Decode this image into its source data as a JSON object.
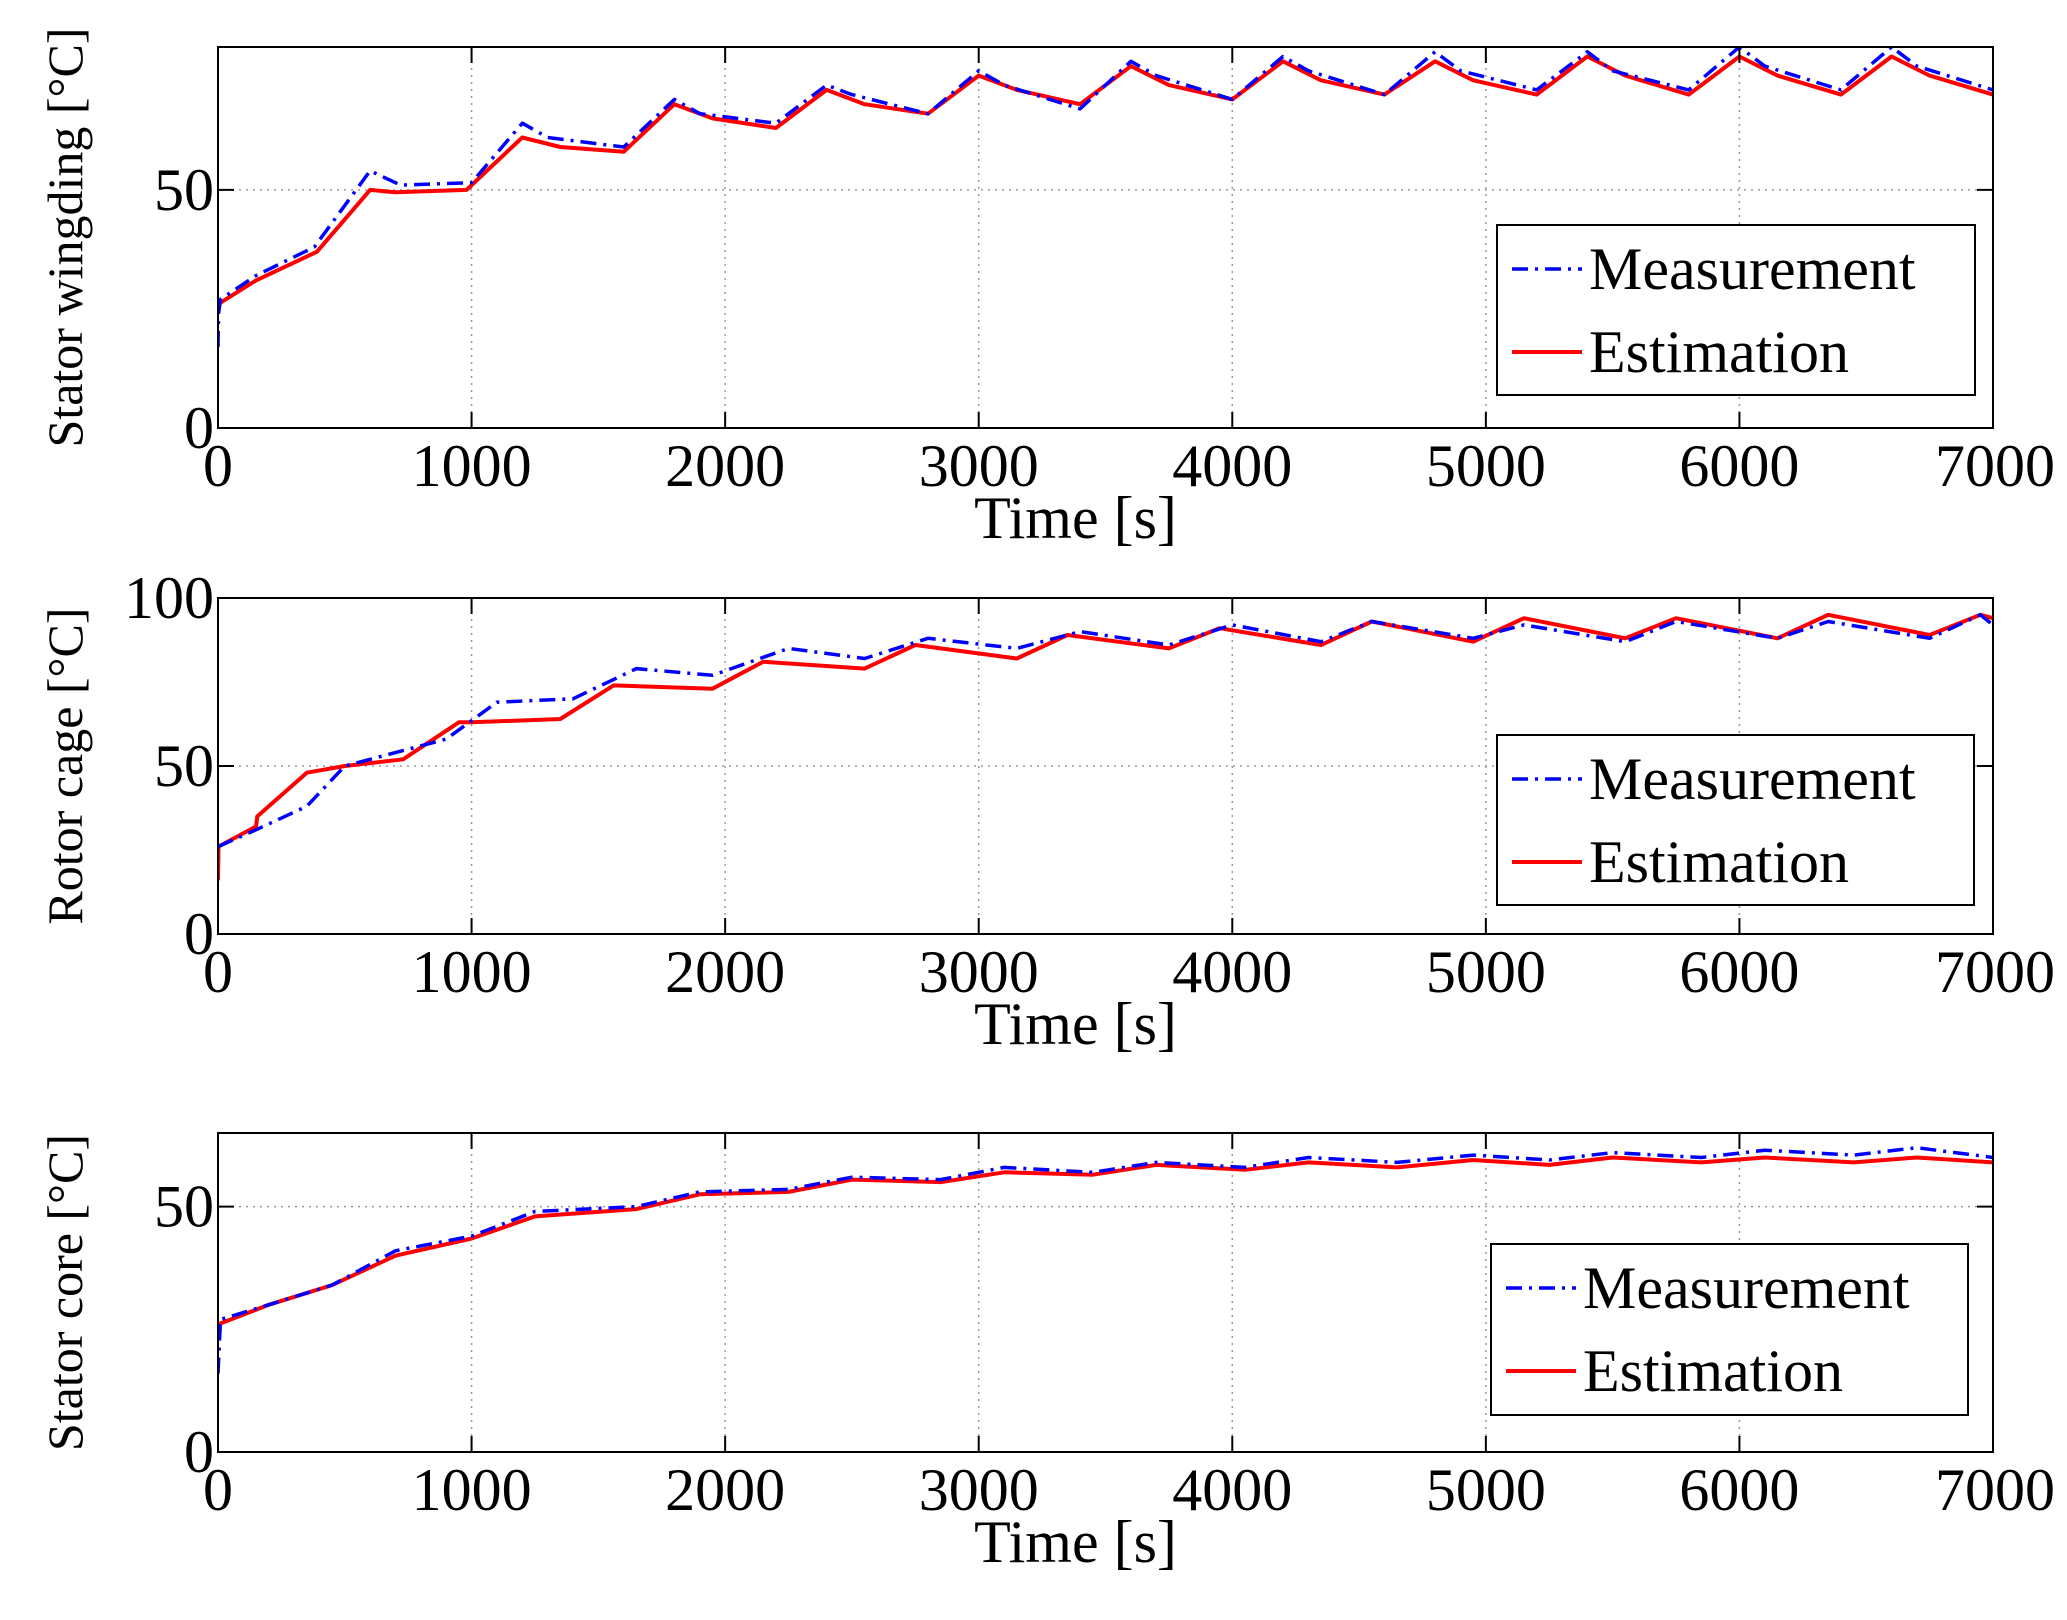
{
  "chart_data": [
    {
      "type": "line",
      "ylabel": "Stator wingding [°C]",
      "xlabel": "Time [s]",
      "xlim": [
        0,
        7000
      ],
      "ylim": [
        0,
        80
      ],
      "xticks": [
        0,
        1000,
        2000,
        3000,
        4000,
        5000,
        6000,
        7000
      ],
      "yticks": [
        0,
        50
      ],
      "grid": true,
      "legend": "lower-right",
      "series": [
        {
          "name": "Measurement",
          "color": "#0000ff",
          "style": "dash-dot",
          "x": [
            0,
            2,
            10,
            150,
            380,
            600,
            720,
            1000,
            1200,
            1300,
            1600,
            1800,
            1900,
            2200,
            2400,
            2500,
            2800,
            3000,
            3100,
            3400,
            3600,
            3700,
            4000,
            4200,
            4300,
            4600,
            4800,
            4900,
            5200,
            5400,
            5500,
            5800,
            6000,
            6100,
            6400,
            6600,
            6700,
            7000
          ],
          "values": [
            17,
            24,
            27,
            32,
            38,
            54,
            51,
            51.5,
            64,
            61,
            59,
            69,
            66,
            64,
            72,
            70,
            66,
            75,
            72,
            67,
            77,
            74,
            69,
            78,
            75,
            70,
            79,
            75,
            71,
            79,
            75,
            71,
            80,
            76,
            71,
            80,
            76,
            71
          ]
        },
        {
          "name": "Estimation",
          "color": "#ff0000",
          "style": "solid",
          "x": [
            0,
            150,
            390,
            600,
            700,
            980,
            1200,
            1350,
            1600,
            1800,
            1950,
            2200,
            2400,
            2550,
            2800,
            3000,
            3150,
            3400,
            3600,
            3750,
            4000,
            4200,
            4350,
            4600,
            4800,
            4950,
            5200,
            5400,
            5550,
            5800,
            6000,
            6150,
            6400,
            6600,
            6750,
            7000
          ],
          "values": [
            26,
            31,
            37,
            50,
            49.5,
            50,
            61,
            59,
            58,
            68,
            65,
            63,
            71,
            68,
            66,
            74,
            71,
            68,
            76,
            72,
            69,
            77,
            73,
            70,
            77,
            73,
            70,
            78,
            74,
            70,
            78,
            74,
            70,
            78,
            74,
            70
          ]
        }
      ]
    },
    {
      "type": "line",
      "ylabel": "Rotor cage [°C]",
      "xlabel": "Time [s]",
      "xlim": [
        0,
        7000
      ],
      "ylim": [
        0,
        100
      ],
      "xticks": [
        0,
        1000,
        2000,
        3000,
        4000,
        5000,
        6000,
        7000
      ],
      "yticks": [
        0,
        50,
        100
      ],
      "grid": true,
      "legend": "lower-right",
      "series": [
        {
          "name": "Measurement",
          "color": "#0000ff",
          "style": "dash-dot",
          "x": [
            0,
            150,
            350,
            500,
            750,
            900,
            1100,
            1400,
            1650,
            1950,
            2250,
            2550,
            2800,
            3150,
            3400,
            3750,
            4000,
            4350,
            4550,
            4950,
            5150,
            5550,
            5750,
            6150,
            6350,
            6750,
            6950,
            7000
          ],
          "values": [
            26,
            31,
            38,
            50,
            55,
            58,
            69,
            70,
            79,
            77,
            85,
            82,
            88,
            85,
            90,
            86,
            92,
            87,
            93,
            88,
            92,
            87,
            93,
            88,
            93,
            88,
            95,
            92
          ]
        },
        {
          "name": "Estimation",
          "color": "#ff0000",
          "style": "solid",
          "x": [
            0,
            2,
            150,
            155,
            350,
            500,
            730,
            950,
            1000,
            1350,
            1560,
            1950,
            2150,
            2550,
            2750,
            3150,
            3350,
            3750,
            3950,
            4350,
            4550,
            4950,
            5150,
            5550,
            5750,
            6150,
            6350,
            6750,
            6950,
            7000
          ],
          "values": [
            16,
            26,
            32,
            35,
            48,
            50,
            52,
            63,
            63,
            64,
            74,
            73,
            81,
            79,
            86,
            82,
            89,
            85,
            91,
            86,
            93,
            87,
            94,
            88,
            94,
            88,
            95,
            89,
            95,
            94
          ]
        }
      ]
    },
    {
      "type": "line",
      "ylabel": "Stator core [°C]",
      "xlabel": "Time [s]",
      "xlim": [
        0,
        7000
      ],
      "ylim": [
        0,
        65
      ],
      "xticks": [
        0,
        1000,
        2000,
        3000,
        4000,
        5000,
        6000,
        7000
      ],
      "yticks": [
        0,
        50
      ],
      "grid": true,
      "legend": "lower-right",
      "series": [
        {
          "name": "Measurement",
          "color": "#0000ff",
          "style": "dash-dot",
          "x": [
            0,
            10,
            200,
            450,
            700,
            1000,
            1250,
            1650,
            1900,
            2250,
            2500,
            2850,
            3100,
            3450,
            3700,
            4050,
            4300,
            4650,
            4950,
            5250,
            5500,
            5850,
            6100,
            6450,
            6700,
            7000
          ],
          "values": [
            16,
            27,
            30,
            34,
            41,
            44,
            49,
            50,
            53,
            53.5,
            56,
            55.5,
            58,
            57,
            59,
            58,
            60,
            59,
            60.5,
            59.5,
            61,
            60,
            61.5,
            60.5,
            62,
            60
          ]
        },
        {
          "name": "Estimation",
          "color": "#ff0000",
          "style": "solid",
          "x": [
            0,
            200,
            450,
            700,
            1000,
            1250,
            1650,
            1900,
            2250,
            2500,
            2850,
            3100,
            3450,
            3700,
            4050,
            4300,
            4650,
            4950,
            5250,
            5500,
            5850,
            6100,
            6450,
            6700,
            7000
          ],
          "values": [
            26,
            30,
            34,
            40,
            43.5,
            48,
            49.5,
            52.5,
            53,
            55.5,
            55,
            57,
            56.5,
            58.5,
            57.5,
            59,
            58,
            59.5,
            58.5,
            60,
            59,
            60,
            59,
            60,
            59
          ]
        }
      ]
    }
  ]
}
